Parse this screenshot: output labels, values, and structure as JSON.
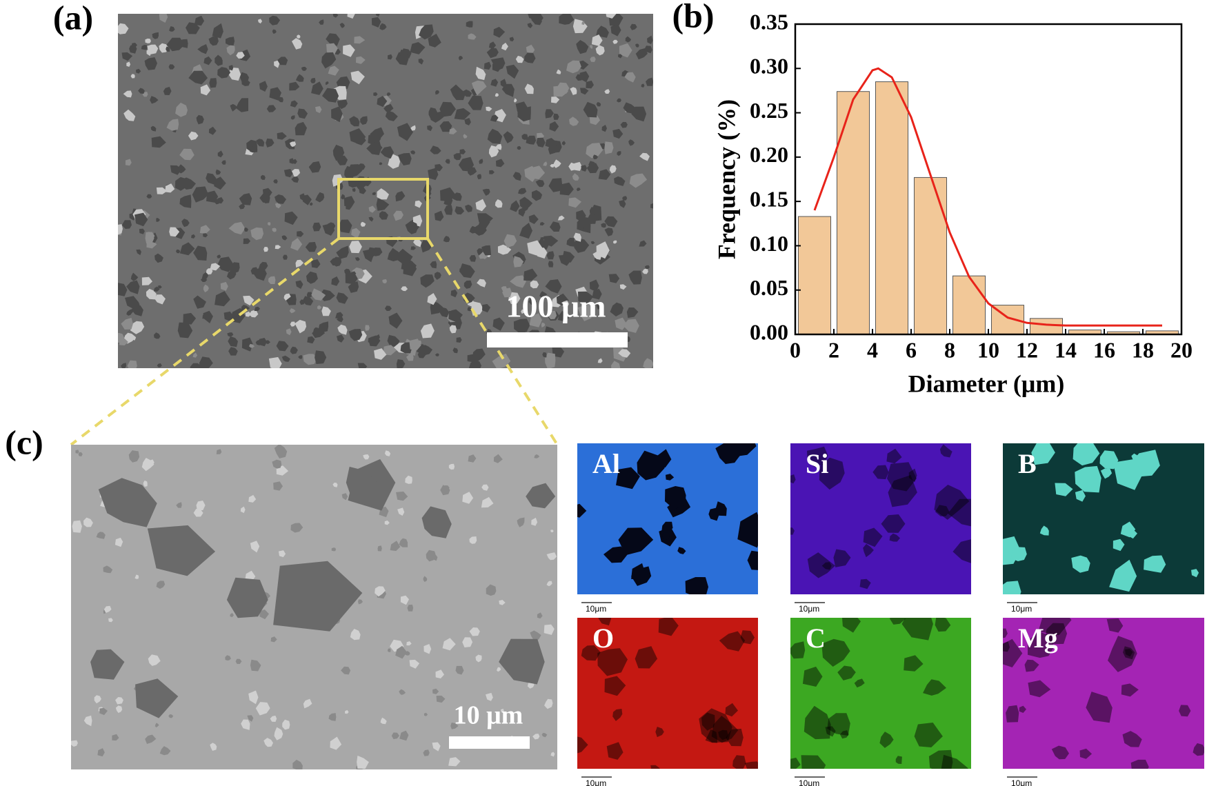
{
  "panel_labels": [
    "(a)",
    "(b)",
    "(c)"
  ],
  "panel_a": {
    "scale_bar": "100 μm"
  },
  "panel_c": {
    "scale_bar": "10 μm",
    "eds_maps": [
      {
        "element": "Al",
        "scale_bar": "10μm",
        "color": "#2b6fd8"
      },
      {
        "element": "Si",
        "scale_bar": "10μm",
        "color": "#4a14b4"
      },
      {
        "element": "B",
        "scale_bar": "10μm",
        "color": "#5fd6c6"
      },
      {
        "element": "O",
        "scale_bar": "10μm",
        "color": "#c41812"
      },
      {
        "element": "C",
        "scale_bar": "10μm",
        "color": "#3ca822"
      },
      {
        "element": "Mg",
        "scale_bar": "10μm",
        "color": "#a424b4"
      }
    ]
  },
  "chart_data": {
    "type": "histogram",
    "x_label": "Diameter (μm)",
    "y_label": "Frequency (%)",
    "bins": [
      0,
      2,
      4,
      6,
      8,
      10,
      12,
      14,
      16,
      18,
      20
    ],
    "values": [
      0.133,
      0.274,
      0.285,
      0.177,
      0.066,
      0.033,
      0.018,
      0.005,
      0.003,
      0.004
    ],
    "color": "#f2c898",
    "fit": {
      "x": [
        1,
        2,
        3,
        4,
        4.3,
        5,
        6,
        7,
        8,
        9,
        10,
        11,
        12,
        13,
        14,
        16,
        19
      ],
      "values": [
        0.14,
        0.2,
        0.265,
        0.298,
        0.3,
        0.29,
        0.245,
        0.18,
        0.115,
        0.065,
        0.035,
        0.019,
        0.013,
        0.011,
        0.01,
        0.01,
        0.01
      ],
      "color": "#e8231a"
    },
    "xlim": [
      0,
      20
    ],
    "ylim": [
      0,
      0.35
    ],
    "xticks": [
      0,
      2,
      4,
      6,
      8,
      10,
      12,
      14,
      16,
      18,
      20
    ],
    "yticks": [
      {
        "value": 0,
        "label": "0.00"
      },
      {
        "value": 0.05,
        "label": "0.05"
      },
      {
        "value": 0.1,
        "label": "0.10"
      },
      {
        "value": 0.15,
        "label": "0.15"
      },
      {
        "value": 0.2,
        "label": "0.20"
      },
      {
        "value": 0.25,
        "label": "0.25"
      },
      {
        "value": 0.3,
        "label": "0.30"
      },
      {
        "value": 0.35,
        "label": "0.35"
      }
    ]
  }
}
